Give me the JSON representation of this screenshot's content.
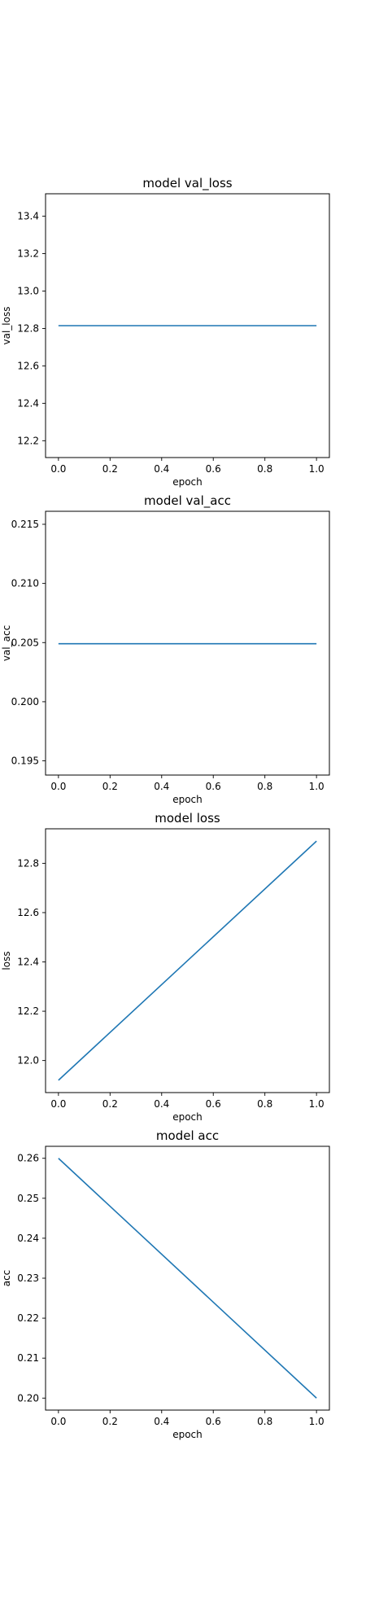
{
  "chart_data": [
    {
      "type": "line",
      "title": "model val_loss",
      "xlabel": "epoch",
      "ylabel": "val_loss",
      "xlim": [
        -0.05,
        1.05
      ],
      "ylim": [
        12.11,
        13.52
      ],
      "xticks": [
        0.0,
        0.2,
        0.4,
        0.6,
        0.8,
        1.0
      ],
      "xtick_labels": [
        "0.0",
        "0.2",
        "0.4",
        "0.6",
        "0.8",
        "1.0"
      ],
      "yticks": [
        12.2,
        12.4,
        12.6,
        12.8,
        13.0,
        13.2,
        13.4
      ],
      "ytick_labels": [
        "12.2",
        "12.4",
        "12.6",
        "12.8",
        "13.0",
        "13.2",
        "13.4"
      ],
      "grid": false,
      "series": [
        {
          "x": [
            0,
            1
          ],
          "y": [
            12.815,
            12.815
          ],
          "color": "#1f77b4"
        }
      ]
    },
    {
      "type": "line",
      "title": "model val_acc",
      "xlabel": "epoch",
      "ylabel": "val_acc",
      "xlim": [
        -0.05,
        1.05
      ],
      "ylim": [
        0.1938,
        0.2161
      ],
      "xticks": [
        0.0,
        0.2,
        0.4,
        0.6,
        0.8,
        1.0
      ],
      "xtick_labels": [
        "0.0",
        "0.2",
        "0.4",
        "0.6",
        "0.8",
        "1.0"
      ],
      "yticks": [
        0.195,
        0.2,
        0.205,
        0.21,
        0.215
      ],
      "ytick_labels": [
        "0.195",
        "0.200",
        "0.205",
        "0.210",
        "0.215"
      ],
      "grid": false,
      "series": [
        {
          "x": [
            0,
            1
          ],
          "y": [
            0.2049,
            0.2049
          ],
          "color": "#1f77b4"
        }
      ]
    },
    {
      "type": "line",
      "title": "model loss",
      "xlabel": "epoch",
      "ylabel": "loss",
      "xlim": [
        -0.05,
        1.05
      ],
      "ylim": [
        11.87,
        12.94
      ],
      "xticks": [
        0.0,
        0.2,
        0.4,
        0.6,
        0.8,
        1.0
      ],
      "xtick_labels": [
        "0.0",
        "0.2",
        "0.4",
        "0.6",
        "0.8",
        "1.0"
      ],
      "yticks": [
        12.0,
        12.2,
        12.4,
        12.6,
        12.8
      ],
      "ytick_labels": [
        "12.0",
        "12.2",
        "12.4",
        "12.6",
        "12.8"
      ],
      "grid": false,
      "series": [
        {
          "x": [
            0,
            1
          ],
          "y": [
            11.92,
            12.89
          ],
          "color": "#1f77b4"
        }
      ]
    },
    {
      "type": "line",
      "title": "model acc",
      "xlabel": "epoch",
      "ylabel": "acc",
      "xlim": [
        -0.05,
        1.05
      ],
      "ylim": [
        0.197,
        0.263
      ],
      "xticks": [
        0.0,
        0.2,
        0.4,
        0.6,
        0.8,
        1.0
      ],
      "xtick_labels": [
        "0.0",
        "0.2",
        "0.4",
        "0.6",
        "0.8",
        "1.0"
      ],
      "yticks": [
        0.2,
        0.21,
        0.22,
        0.23,
        0.24,
        0.25,
        0.26
      ],
      "ytick_labels": [
        "0.20",
        "0.21",
        "0.22",
        "0.23",
        "0.24",
        "0.25",
        "0.26"
      ],
      "grid": false,
      "series": [
        {
          "x": [
            0,
            1
          ],
          "y": [
            0.26,
            0.2
          ],
          "color": "#1f77b4"
        }
      ]
    }
  ]
}
